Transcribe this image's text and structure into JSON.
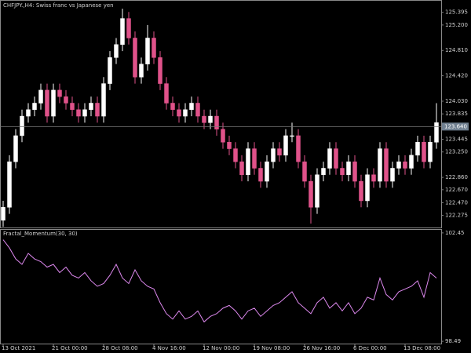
{
  "chart_data": [
    {
      "type": "candlestick",
      "title": "CHFJPY.,H4:  Swiss franc vs Japanese yen",
      "up_color": "#ffffff",
      "down_color": "#e0528a",
      "open": [
        122.2,
        122.4,
        123.1,
        123.5,
        123.8,
        123.9,
        124.0,
        124.2,
        123.8,
        124.2,
        124.1,
        124.0,
        123.9,
        123.8,
        123.9,
        124.0,
        123.8,
        124.3,
        124.7,
        124.9,
        125.3,
        125.0,
        124.4,
        124.6,
        125.0,
        124.7,
        124.3,
        124.0,
        123.9,
        123.8,
        123.9,
        124.0,
        123.8,
        123.7,
        123.8,
        123.6,
        123.4,
        123.3,
        123.1,
        122.9,
        123.3,
        123.0,
        122.8,
        123.1,
        123.3,
        123.2,
        123.5,
        123.5,
        123.1,
        122.8,
        122.4,
        122.9,
        123.0,
        123.3,
        123.0,
        122.9,
        123.1,
        122.8,
        122.5,
        122.9,
        122.8,
        123.3,
        122.8,
        123.0,
        123.1,
        123.0,
        123.2,
        123.4,
        123.1,
        123.4
      ],
      "high": [
        122.5,
        123.2,
        123.6,
        123.9,
        124.0,
        124.1,
        124.3,
        124.3,
        124.3,
        124.3,
        124.2,
        124.1,
        124.0,
        124.0,
        124.1,
        124.1,
        124.4,
        124.8,
        125.0,
        125.45,
        125.4,
        125.1,
        124.7,
        125.2,
        125.1,
        124.8,
        124.4,
        124.1,
        124.0,
        124.0,
        124.1,
        124.1,
        123.9,
        123.9,
        123.9,
        123.7,
        123.5,
        123.4,
        123.2,
        123.4,
        123.4,
        123.1,
        123.2,
        123.4,
        123.4,
        123.6,
        123.7,
        123.6,
        123.2,
        122.9,
        123.0,
        123.1,
        123.4,
        123.4,
        123.1,
        123.2,
        123.2,
        122.9,
        123.0,
        123.0,
        123.4,
        123.4,
        123.1,
        123.2,
        123.2,
        123.3,
        123.5,
        123.5,
        123.5,
        124.0
      ],
      "low": [
        122.1,
        122.3,
        123.0,
        123.4,
        123.7,
        123.8,
        123.9,
        123.7,
        123.7,
        124.0,
        123.9,
        123.8,
        123.7,
        123.7,
        123.8,
        123.7,
        123.7,
        124.2,
        124.6,
        124.8,
        124.9,
        124.3,
        124.3,
        124.5,
        124.6,
        124.2,
        123.9,
        123.8,
        123.7,
        123.7,
        123.8,
        123.7,
        123.6,
        123.6,
        123.5,
        123.3,
        123.2,
        123.0,
        122.8,
        122.8,
        122.9,
        122.7,
        122.7,
        123.0,
        123.1,
        123.1,
        123.4,
        123.0,
        122.7,
        122.15,
        122.3,
        122.8,
        122.9,
        122.9,
        122.8,
        122.8,
        122.7,
        122.4,
        122.4,
        122.7,
        122.7,
        122.7,
        122.7,
        122.9,
        122.9,
        122.9,
        123.1,
        123.0,
        123.0,
        123.3
      ],
      "close": [
        122.4,
        123.1,
        123.5,
        123.8,
        123.9,
        124.0,
        124.2,
        123.8,
        124.2,
        124.1,
        124.0,
        123.9,
        123.8,
        123.9,
        124.0,
        123.8,
        124.3,
        124.7,
        124.9,
        125.3,
        125.0,
        124.4,
        124.6,
        125.0,
        124.7,
        124.3,
        124.0,
        123.9,
        123.8,
        123.9,
        124.0,
        123.8,
        123.7,
        123.8,
        123.6,
        123.4,
        123.3,
        123.1,
        122.9,
        123.3,
        123.0,
        122.8,
        123.1,
        123.3,
        123.2,
        123.5,
        123.5,
        123.1,
        122.8,
        122.4,
        122.9,
        123.0,
        123.3,
        123.0,
        122.9,
        123.1,
        122.8,
        122.5,
        122.9,
        122.8,
        123.3,
        122.8,
        123.0,
        123.1,
        123.0,
        123.2,
        123.4,
        123.1,
        123.4,
        123.7
      ],
      "last_price": {
        "value": 123.64,
        "label": "123.640"
      },
      "ylim": [
        122.09,
        125.56
      ],
      "yticks": [
        {
          "value": 125.395,
          "label": "125.395"
        },
        {
          "value": 125.2,
          "label": "125.200"
        },
        {
          "value": 124.81,
          "label": "124.810"
        },
        {
          "value": 124.42,
          "label": "124.420"
        },
        {
          "value": 124.03,
          "label": "124.030"
        },
        {
          "value": 123.835,
          "label": "123.835"
        },
        {
          "value": 123.445,
          "label": "123.445"
        },
        {
          "value": 123.25,
          "label": "123.250"
        },
        {
          "value": 122.86,
          "label": "122.860"
        },
        {
          "value": 122.67,
          "label": "122.670"
        },
        {
          "value": 122.47,
          "label": "122.470"
        },
        {
          "value": 122.275,
          "label": "122.275"
        }
      ]
    },
    {
      "type": "line",
      "title": "Fractal_Momentum(30, 30)",
      "color": "#dd88ee",
      "values": [
        102.2,
        101.9,
        101.5,
        101.3,
        101.7,
        101.5,
        101.4,
        101.2,
        101.3,
        101.0,
        101.2,
        100.9,
        100.8,
        101.0,
        100.7,
        100.5,
        100.6,
        100.9,
        101.3,
        100.8,
        100.6,
        101.1,
        100.7,
        100.5,
        100.4,
        99.9,
        99.5,
        99.3,
        99.6,
        99.3,
        99.4,
        99.6,
        99.2,
        99.4,
        99.5,
        99.7,
        99.8,
        99.6,
        99.3,
        99.6,
        99.7,
        99.4,
        99.6,
        99.8,
        99.9,
        100.1,
        100.3,
        99.9,
        99.7,
        99.5,
        99.9,
        100.1,
        99.7,
        99.9,
        99.6,
        99.9,
        99.5,
        99.7,
        100.1,
        100.0,
        100.8,
        100.2,
        100.0,
        100.3,
        100.4,
        100.5,
        100.7,
        100.1,
        101.0,
        100.8
      ],
      "ylim": [
        98.12,
        102.59
      ],
      "yticks": [
        102.45,
        98.49
      ],
      "xticks": [
        {
          "value": 0,
          "label": "13 Oct 2021"
        },
        {
          "value": 8,
          "label": "21 Oct 00:00"
        },
        {
          "value": 16,
          "label": "28 Oct 08:00"
        },
        {
          "value": 24,
          "label": "4 Nov 16:00"
        },
        {
          "value": 32,
          "label": "12 Nov 00:00"
        },
        {
          "value": 40,
          "label": "19 Nov 08:00"
        },
        {
          "value": 48,
          "label": "26 Nov 16:00"
        },
        {
          "value": 56,
          "label": "6 Dec 00:00"
        },
        {
          "value": 64,
          "label": "13 Dec 08:00"
        }
      ]
    }
  ]
}
